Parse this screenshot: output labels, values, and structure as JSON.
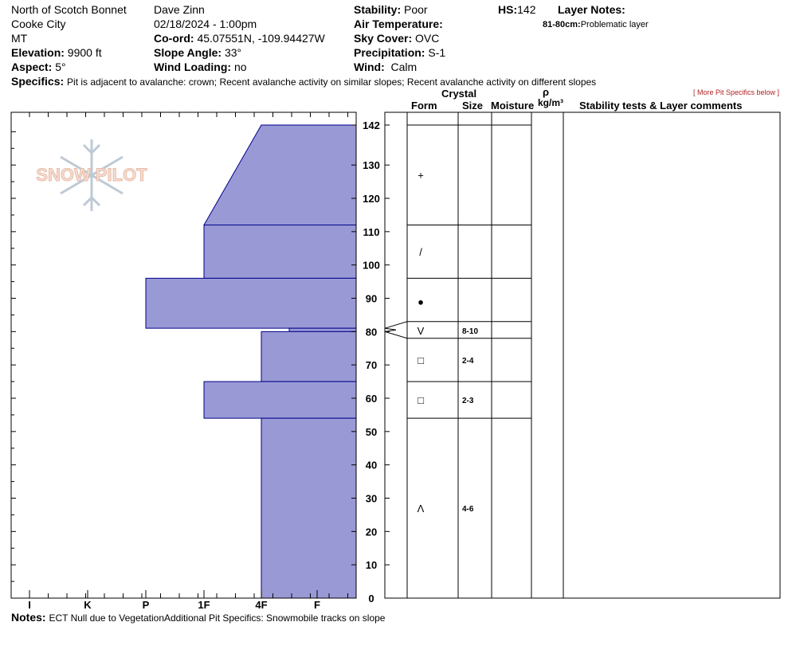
{
  "header": {
    "location": "North of Scotch Bonnet",
    "region": "Cooke City",
    "state": "MT",
    "elevation_label": "Elevation:",
    "elevation": "9900 ft",
    "aspect_label": "Aspect:",
    "aspect": "5°",
    "observer": "Dave Zinn",
    "datetime": "02/18/2024 - 1:00pm",
    "coord_label": "Co-ord:",
    "coord": "45.07551N, -109.94427W",
    "slope_label": "Slope Angle:",
    "slope": "33°",
    "wind_loading_label": "Wind Loading:",
    "wind_loading": "no",
    "stability_label": "Stability:",
    "stability": "Poor",
    "air_temp_label": "Air Temperature:",
    "air_temp": "",
    "sky_label": "Sky Cover:",
    "sky": "OVC",
    "precip_label": "Precipitation:",
    "precip": "S-1",
    "wind_label": "Wind:",
    "wind": "Calm",
    "hs_label": "HS:",
    "hs": "142",
    "layer_notes_label": "Layer Notes:",
    "layer_note_range": "81-80cm:",
    "layer_note_text": "Problematic layer",
    "specifics_label": "Specifics:",
    "specifics": "Pit is adjacent to avalanche: crown; Recent avalanche activity on similar slopes; Recent avalanche activity on different slopes",
    "more_link": "[ More Pit Specifics below ]"
  },
  "table_headers": {
    "crystal": "Crystal",
    "form": "Form",
    "size": "Size",
    "moisture": "Moisture",
    "rho": "ρ",
    "density_unit": "kg/m³",
    "comments": "Stability tests & Layer comments"
  },
  "notes": {
    "label": "Notes:",
    "text": "ECT Null due to VegetationAdditional Pit Specifics: Snowmobile tracks on slope"
  },
  "logo_text": "SNOW PILOT",
  "colors": {
    "hardness_fill": "#9999d6",
    "hardness_stroke": "#00008b"
  },
  "chart_data": {
    "type": "bar",
    "title": "",
    "xlabel": "",
    "ylabel": "",
    "hardness_scale": [
      "I",
      "K",
      "P",
      "1F",
      "4F",
      "F"
    ],
    "ylim": [
      0,
      142
    ],
    "y_ticks": [
      0,
      10,
      20,
      30,
      40,
      50,
      60,
      70,
      80,
      90,
      100,
      110,
      120,
      130,
      142
    ],
    "layers": [
      {
        "top": 142,
        "bottom": 112,
        "hardness_top": "4F",
        "hardness_bottom": "1F"
      },
      {
        "top": 112,
        "bottom": 96,
        "hardness": "1F"
      },
      {
        "top": 96,
        "bottom": 81,
        "hardness": "P"
      },
      {
        "top": 81,
        "bottom": 80,
        "hardness": "4F-F"
      },
      {
        "top": 80,
        "bottom": 65,
        "hardness": "4F"
      },
      {
        "top": 65,
        "bottom": 54,
        "hardness": "1F"
      },
      {
        "top": 54,
        "bottom": 0,
        "hardness": "4F"
      }
    ],
    "crystals": [
      {
        "top": 142,
        "bottom": 112,
        "form": "+",
        "size": ""
      },
      {
        "top": 112,
        "bottom": 96,
        "form": "/",
        "size": ""
      },
      {
        "top": 96,
        "bottom": 81,
        "form": "●",
        "size": ""
      },
      {
        "top": 81,
        "bottom": 78,
        "form": "V",
        "size": "8-10"
      },
      {
        "top": 78,
        "bottom": 65,
        "form": "□",
        "size": "2-4"
      },
      {
        "top": 65,
        "bottom": 54,
        "form": "□",
        "size": "2-3"
      },
      {
        "top": 54,
        "bottom": 0,
        "form": "Λ",
        "size": "4-6"
      }
    ]
  }
}
